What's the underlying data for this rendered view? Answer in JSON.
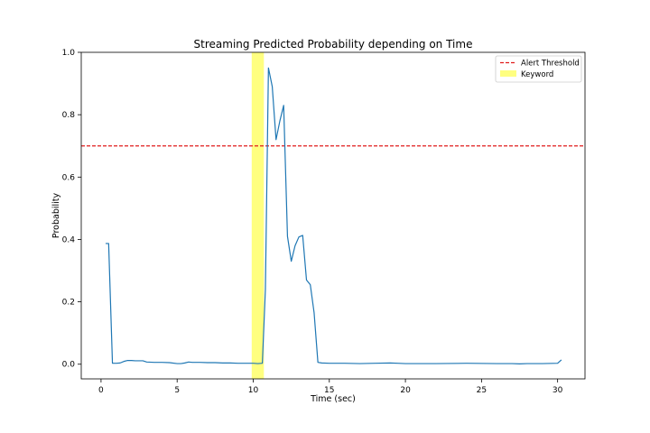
{
  "chart_data": {
    "type": "line",
    "title": "Streaming Predicted Probability depending on Time",
    "xlabel": "Time (sec)",
    "ylabel": "Probability",
    "xlim": [
      -1.3,
      31.8
    ],
    "ylim": [
      -0.047,
      1.0
    ],
    "xticks": [
      0,
      5,
      10,
      15,
      20,
      25,
      30
    ],
    "yticks": [
      0.0,
      0.2,
      0.4,
      0.6,
      0.8,
      1.0
    ],
    "xtick_labels": [
      "0",
      "5",
      "10",
      "15",
      "20",
      "25",
      "30"
    ],
    "ytick_labels": [
      "0.0",
      "0.2",
      "0.4",
      "0.6",
      "0.8",
      "1.0"
    ],
    "grid": false,
    "legend_position": "top-right",
    "threshold": {
      "name": "Alert Threshold",
      "value": 0.7,
      "color": "#e01b1b",
      "style": "dashed"
    },
    "keyword_span": {
      "name": "Keyword",
      "start": 9.9,
      "end": 10.7,
      "color": "#ffff80"
    },
    "series": [
      {
        "color": "#1f77b4",
        "x": [
          0.3,
          0.5,
          0.75,
          1.0,
          1.25,
          1.5,
          1.75,
          2.0,
          2.25,
          2.5,
          2.75,
          3.0,
          3.5,
          4.0,
          4.5,
          5.0,
          5.25,
          5.5,
          5.75,
          6.0,
          6.5,
          7.0,
          7.5,
          8.0,
          8.5,
          9.0,
          9.5,
          10.0,
          10.3,
          10.6,
          10.8,
          11.0,
          11.25,
          11.5,
          11.75,
          12.0,
          12.25,
          12.5,
          12.75,
          13.0,
          13.25,
          13.5,
          13.75,
          14.0,
          14.25,
          14.5,
          15.0,
          16.0,
          17.0,
          18.0,
          19.0,
          19.5,
          20.0,
          22.0,
          24.0,
          26.0,
          27.0,
          27.5,
          28.0,
          29.0,
          30.0,
          30.25
        ],
        "y": [
          0.387,
          0.387,
          0.003,
          0.003,
          0.004,
          0.009,
          0.012,
          0.012,
          0.011,
          0.011,
          0.011,
          0.007,
          0.006,
          0.006,
          0.005,
          0.002,
          0.002,
          0.004,
          0.007,
          0.006,
          0.006,
          0.005,
          0.005,
          0.004,
          0.004,
          0.003,
          0.003,
          0.003,
          0.002,
          0.003,
          0.24,
          0.95,
          0.89,
          0.72,
          0.78,
          0.83,
          0.41,
          0.33,
          0.38,
          0.408,
          0.413,
          0.27,
          0.255,
          0.165,
          0.006,
          0.004,
          0.003,
          0.003,
          0.002,
          0.003,
          0.004,
          0.003,
          0.002,
          0.002,
          0.003,
          0.002,
          0.002,
          0.001,
          0.002,
          0.002,
          0.003,
          0.014
        ]
      }
    ]
  }
}
